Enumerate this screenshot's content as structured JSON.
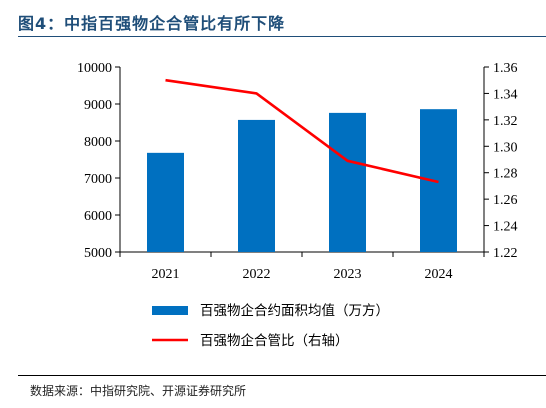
{
  "figure_title": "图4：中指百强物企合管比有所下降",
  "source_note": "数据来源：中指研究院、开源证券研究所",
  "colors": {
    "title": "#1f4e79",
    "bar": "#0070c0",
    "line": "#ff0000"
  },
  "chart_data": {
    "type": "bar",
    "categories": [
      "2021",
      "2022",
      "2023",
      "2024"
    ],
    "series": [
      {
        "name": "百强物企合约面积均值（万方）",
        "type": "bar",
        "axis": "left",
        "values": [
          7680,
          8570,
          8760,
          8860
        ]
      },
      {
        "name": "百强物企合管比（右轴）",
        "type": "line",
        "axis": "right",
        "values": [
          1.35,
          1.34,
          1.289,
          1.273
        ]
      }
    ],
    "left_axis": {
      "range": [
        5000,
        10000
      ],
      "ticks": [
        "5000",
        "6000",
        "7000",
        "8000",
        "9000",
        "10000"
      ]
    },
    "right_axis": {
      "range": [
        1.22,
        1.36
      ],
      "ticks": [
        "1.22",
        "1.24",
        "1.26",
        "1.28",
        "1.30",
        "1.32",
        "1.34",
        "1.36"
      ]
    },
    "grid": false,
    "legend_position": "bottom"
  }
}
